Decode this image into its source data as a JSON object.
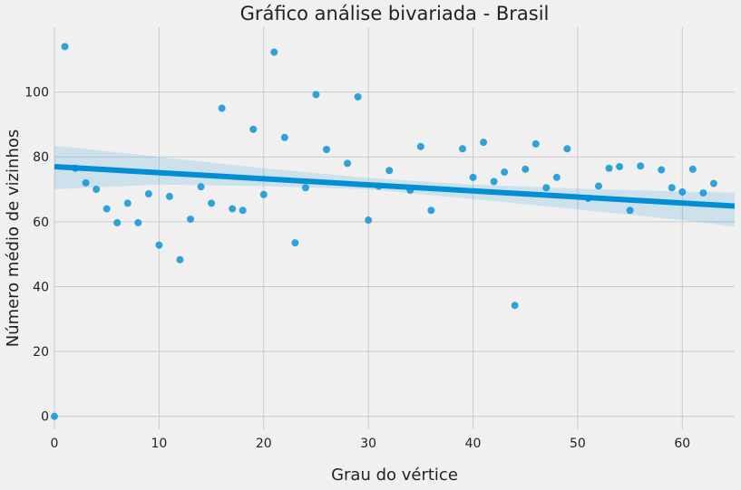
{
  "chart_data": {
    "type": "scatter",
    "title": "Gráfico análise bivariada - Brasil",
    "xlabel": "Grau do vértice",
    "ylabel": "Número médio de vizinhos",
    "xlim": [
      0,
      65
    ],
    "ylim": [
      -4,
      120
    ],
    "xticks": [
      0,
      10,
      20,
      30,
      40,
      50,
      60
    ],
    "yticks": [
      0,
      20,
      40,
      60,
      80,
      100
    ],
    "grid": true,
    "colors": {
      "points": "#008fd5",
      "line": "#008fd5",
      "band": "#008fd5",
      "background": "#f0f0f0",
      "grid": "#cbcbcb"
    },
    "points": [
      [
        0,
        0
      ],
      [
        1,
        114
      ],
      [
        2,
        76.5
      ],
      [
        3,
        72
      ],
      [
        4,
        70
      ],
      [
        5,
        64
      ],
      [
        6,
        59.7
      ],
      [
        7,
        65.7
      ],
      [
        8,
        59.7
      ],
      [
        9,
        68.6
      ],
      [
        10,
        52.8
      ],
      [
        11,
        67.8
      ],
      [
        12,
        48.3
      ],
      [
        13,
        60.8
      ],
      [
        14,
        70.8
      ],
      [
        15,
        65.7
      ],
      [
        16,
        95
      ],
      [
        17,
        64
      ],
      [
        18,
        63.5
      ],
      [
        19,
        88.5
      ],
      [
        20,
        68.4
      ],
      [
        21,
        112.3
      ],
      [
        22,
        86
      ],
      [
        23,
        53.5
      ],
      [
        24,
        70.5
      ],
      [
        25,
        99.2
      ],
      [
        26,
        82.3
      ],
      [
        28,
        78
      ],
      [
        29,
        98.5
      ],
      [
        30,
        60.5
      ],
      [
        31,
        71
      ],
      [
        32,
        75.8
      ],
      [
        34,
        69.7
      ],
      [
        35,
        83.2
      ],
      [
        36,
        63.5
      ],
      [
        39,
        82.5
      ],
      [
        40,
        73.7
      ],
      [
        41,
        84.5
      ],
      [
        42,
        72.4
      ],
      [
        43,
        75.3
      ],
      [
        44,
        34.2
      ],
      [
        45,
        76.2
      ],
      [
        46,
        84
      ],
      [
        47,
        70.5
      ],
      [
        48,
        73.7
      ],
      [
        49,
        82.5
      ],
      [
        51,
        67.2
      ],
      [
        52,
        71
      ],
      [
        53,
        76.5
      ],
      [
        54,
        77
      ],
      [
        55,
        63.5
      ],
      [
        56,
        77.2
      ],
      [
        58,
        76
      ],
      [
        59,
        70.5
      ],
      [
        60,
        69.2
      ],
      [
        61,
        76.2
      ],
      [
        62,
        68.9
      ],
      [
        63,
        71.8
      ]
    ],
    "regression": {
      "intercept": 77.0,
      "slope": -0.187
    },
    "confidence_band": [
      {
        "x": 0,
        "low": 70,
        "high": 83.5
      },
      {
        "x": 10,
        "low": 71.5,
        "high": 80
      },
      {
        "x": 20,
        "low": 71,
        "high": 76.5
      },
      {
        "x": 30,
        "low": 70,
        "high": 73.5
      },
      {
        "x": 40,
        "low": 67,
        "high": 71.5
      },
      {
        "x": 50,
        "low": 63.8,
        "high": 70.2
      },
      {
        "x": 60,
        "low": 60.5,
        "high": 69.3
      },
      {
        "x": 65,
        "low": 58.5,
        "high": 69
      }
    ]
  }
}
